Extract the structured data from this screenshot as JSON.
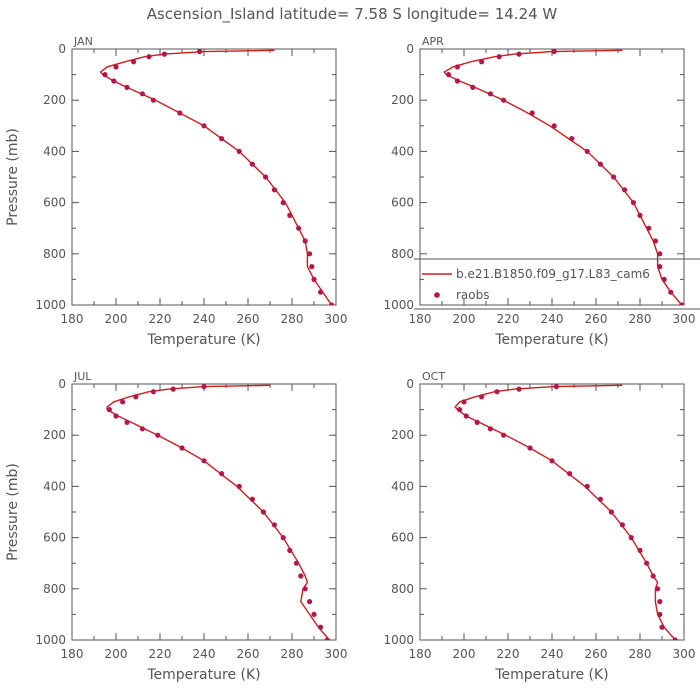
{
  "title": "Ascension_Island   latitude=  7.58 S  longitude=  14.24 W",
  "colors": {
    "model": "#d01c1c",
    "obs": "#b5174d",
    "text": "#555555"
  },
  "chart_data": [
    {
      "type": "line",
      "panel": "JAN",
      "xlabel": "Temperature (K)",
      "ylabel": "Pressure (mb)",
      "xlim": [
        180,
        300
      ],
      "ylim": [
        1000,
        0
      ],
      "xticks": [
        180,
        200,
        220,
        240,
        260,
        280,
        300
      ],
      "yticks": [
        0,
        200,
        400,
        600,
        800,
        1000
      ],
      "model": {
        "pressure": [
          5,
          10,
          20,
          30,
          50,
          70,
          90,
          100,
          125,
          150,
          200,
          250,
          300,
          400,
          500,
          600,
          700,
          750,
          800,
          850,
          900,
          950,
          1000
        ],
        "temperature": [
          272,
          240,
          222,
          213,
          204,
          196,
          193,
          194,
          199,
          205,
          218,
          229,
          240,
          256,
          268,
          277,
          283,
          286,
          287,
          287,
          290,
          294,
          298
        ]
      },
      "raobs": {
        "pressure": [
          10,
          20,
          30,
          50,
          70,
          100,
          125,
          150,
          175,
          200,
          250,
          300,
          350,
          400,
          450,
          500,
          550,
          600,
          650,
          700,
          750,
          800,
          850,
          900,
          950,
          1000
        ],
        "temperature": [
          238,
          222,
          215,
          208,
          200,
          195,
          199,
          205,
          212,
          217,
          229,
          240,
          248,
          256,
          262,
          268,
          272,
          276,
          279,
          283,
          286,
          288,
          289,
          290,
          293,
          298
        ]
      }
    },
    {
      "type": "line",
      "panel": "APR",
      "xlabel": "Temperature (K)",
      "ylabel": "",
      "xlim": [
        180,
        300
      ],
      "ylim": [
        1000,
        0
      ],
      "xticks": [
        180,
        200,
        220,
        240,
        260,
        280,
        300
      ],
      "yticks": [
        0,
        200,
        400,
        600,
        800,
        1000
      ],
      "legend": {
        "placement": "bottom-right",
        "entries": [
          "b.e21.B1850.f09_g17.L83_cam6",
          "raobs"
        ]
      },
      "model": {
        "pressure": [
          5,
          10,
          20,
          30,
          50,
          70,
          90,
          100,
          125,
          150,
          200,
          250,
          300,
          400,
          500,
          600,
          700,
          750,
          800,
          850,
          900,
          950,
          1000
        ],
        "temperature": [
          272,
          240,
          223,
          214,
          203,
          195,
          191,
          192,
          198,
          205,
          218,
          229,
          239,
          256,
          268,
          277,
          283,
          286,
          288,
          288,
          290,
          294,
          299
        ]
      },
      "raobs": {
        "pressure": [
          10,
          20,
          30,
          50,
          70,
          100,
          125,
          150,
          175,
          200,
          250,
          300,
          350,
          400,
          450,
          500,
          550,
          600,
          650,
          700,
          750,
          800,
          850,
          900,
          950,
          1000
        ],
        "temperature": [
          241,
          225,
          216,
          208,
          197,
          193,
          197,
          204,
          212,
          218,
          231,
          241,
          249,
          256,
          262,
          268,
          273,
          277,
          280,
          284,
          287,
          289,
          289,
          291,
          294,
          299
        ]
      }
    },
    {
      "type": "line",
      "panel": "JUL",
      "xlabel": "Temperature (K)",
      "ylabel": "Pressure (mb)",
      "xlim": [
        180,
        300
      ],
      "ylim": [
        1000,
        0
      ],
      "xticks": [
        180,
        200,
        220,
        240,
        260,
        280,
        300
      ],
      "yticks": [
        0,
        200,
        400,
        600,
        800,
        1000
      ],
      "model": {
        "pressure": [
          5,
          10,
          20,
          30,
          50,
          70,
          90,
          100,
          125,
          150,
          200,
          250,
          300,
          400,
          500,
          600,
          700,
          750,
          775,
          800,
          850,
          900,
          950,
          1000
        ],
        "temperature": [
          270,
          240,
          224,
          215,
          206,
          199,
          196,
          196,
          201,
          207,
          219,
          230,
          240,
          255,
          267,
          276,
          283,
          286,
          287,
          285,
          284,
          288,
          292,
          297
        ]
      },
      "raobs": {
        "pressure": [
          10,
          20,
          30,
          50,
          70,
          100,
          125,
          150,
          175,
          200,
          250,
          300,
          350,
          400,
          450,
          500,
          550,
          600,
          650,
          700,
          750,
          800,
          850,
          900,
          950,
          1000
        ],
        "temperature": [
          240,
          226,
          217,
          209,
          203,
          197,
          200,
          205,
          212,
          219,
          230,
          240,
          248,
          256,
          262,
          267,
          272,
          276,
          279,
          282,
          284,
          286,
          288,
          290,
          293,
          296
        ]
      }
    },
    {
      "type": "line",
      "panel": "OCT",
      "xlabel": "Temperature (K)",
      "ylabel": "",
      "xlim": [
        180,
        300
      ],
      "ylim": [
        1000,
        0
      ],
      "xticks": [
        180,
        200,
        220,
        240,
        260,
        280,
        300
      ],
      "yticks": [
        0,
        200,
        400,
        600,
        800,
        1000
      ],
      "model": {
        "pressure": [
          5,
          10,
          20,
          30,
          50,
          70,
          90,
          100,
          125,
          150,
          200,
          250,
          300,
          400,
          500,
          600,
          700,
          750,
          775,
          800,
          850,
          900,
          950,
          1000
        ],
        "temperature": [
          272,
          241,
          223,
          214,
          205,
          198,
          196,
          197,
          201,
          207,
          219,
          230,
          240,
          255,
          267,
          276,
          283,
          286,
          288,
          287,
          287,
          288,
          291,
          296
        ]
      },
      "raobs": {
        "pressure": [
          10,
          20,
          30,
          50,
          70,
          100,
          125,
          150,
          175,
          200,
          250,
          300,
          350,
          400,
          450,
          500,
          550,
          600,
          650,
          700,
          750,
          800,
          850,
          900,
          950,
          1000
        ],
        "temperature": [
          242,
          225,
          215,
          208,
          200,
          198,
          201,
          206,
          212,
          218,
          230,
          240,
          248,
          256,
          262,
          267,
          272,
          276,
          280,
          283,
          286,
          288,
          289,
          289,
          290,
          296
        ]
      }
    }
  ]
}
